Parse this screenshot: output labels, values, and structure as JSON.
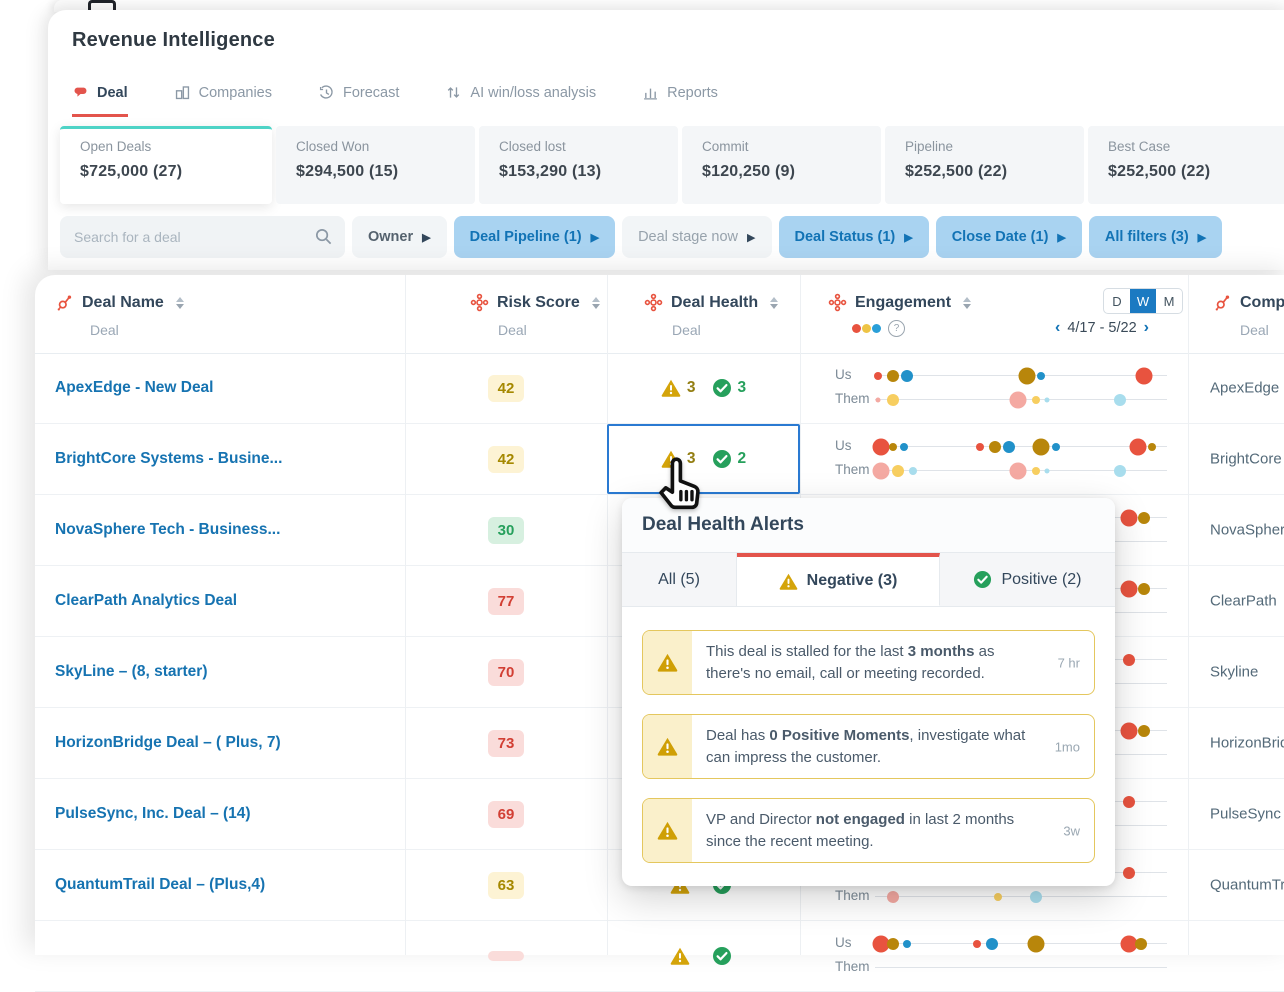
{
  "app": {
    "title": "Revenue Intelligence"
  },
  "nav": {
    "tabs": [
      {
        "label": "Deal",
        "icon": "deal-icon",
        "active": true
      },
      {
        "label": "Companies",
        "icon": "companies-icon"
      },
      {
        "label": "Forecast",
        "icon": "forecast-icon"
      },
      {
        "label": "AI win/loss analysis",
        "icon": "ai-winloss-icon"
      },
      {
        "label": "Reports",
        "icon": "reports-icon"
      }
    ]
  },
  "summary_cards": [
    {
      "label": "Open Deals",
      "value": "$725,000 (27)",
      "active": true
    },
    {
      "label": "Closed Won",
      "value": "$294,500 (15)",
      "active": false
    },
    {
      "label": "Closed lost",
      "value": "$153,290 (13)",
      "active": false
    },
    {
      "label": "Commit",
      "value": "$120,250 (9)",
      "active": false
    },
    {
      "label": "Pipeline",
      "value": "$252,500 (22)",
      "active": false
    },
    {
      "label": "Best Case",
      "value": "$252,500 (22)",
      "active": false
    }
  ],
  "filters": {
    "search_placeholder": "Search for a deal",
    "buttons": [
      {
        "label": "Owner",
        "style": "plain"
      },
      {
        "label": "Deal Pipeline (1)",
        "style": "active"
      },
      {
        "label": "Deal stage now",
        "style": "muted"
      },
      {
        "label": "Deal Status (1)",
        "style": "active"
      },
      {
        "label": "Close Date (1)",
        "style": "active"
      },
      {
        "label": "All filters (3)",
        "style": "active"
      }
    ]
  },
  "table": {
    "columns": {
      "deal_name": {
        "label": "Deal Name",
        "sub": "Deal"
      },
      "risk": {
        "label": "Risk Score",
        "sub": "Deal"
      },
      "health": {
        "label": "Deal Health",
        "sub": "Deal"
      },
      "engagement": {
        "label": "Engagement"
      },
      "company": {
        "label": "Company",
        "sub": "Deal"
      }
    },
    "engagement_header": {
      "periods": [
        "D",
        "W",
        "M"
      ],
      "selected_period": "W",
      "date_range": "4/17 - 5/22"
    },
    "engagement_labels": {
      "us": "Us",
      "them": "Them"
    },
    "rows": [
      {
        "name": "ApexEdge - New Deal",
        "risk": "42",
        "risk_level": "yellow",
        "negative": "3",
        "positive": "3",
        "company": "ApexEdge",
        "selected": false,
        "us": [
          {
            "c": "red",
            "s": "s",
            "x": 1
          },
          {
            "c": "olive",
            "s": "m",
            "x": 6
          },
          {
            "c": "blue",
            "s": "m",
            "x": 11
          },
          {
            "c": "olive",
            "s": "l",
            "x": 52
          },
          {
            "c": "blue",
            "s": "s",
            "x": 57
          },
          {
            "c": "red",
            "s": "l",
            "x": 92
          }
        ],
        "them": [
          {
            "c": "pink",
            "s": "xs",
            "x": 1
          },
          {
            "c": "yellow",
            "s": "m",
            "x": 6
          },
          {
            "c": "pink",
            "s": "l",
            "x": 49
          },
          {
            "c": "yellow",
            "s": "s",
            "x": 55
          },
          {
            "c": "lblue",
            "s": "xs",
            "x": 59
          },
          {
            "c": "lblue",
            "s": "m",
            "x": 84
          }
        ]
      },
      {
        "name": "BrightCore Systems - Busine...",
        "risk": "42",
        "risk_level": "yellow",
        "negative": "3",
        "positive": "2",
        "company": "BrightCore",
        "selected": true,
        "us": [
          {
            "c": "red",
            "s": "l",
            "x": 2
          },
          {
            "c": "olive",
            "s": "s",
            "x": 6
          },
          {
            "c": "blue",
            "s": "s",
            "x": 10
          },
          {
            "c": "red",
            "s": "s",
            "x": 36
          },
          {
            "c": "olive",
            "s": "m",
            "x": 41
          },
          {
            "c": "blue",
            "s": "m",
            "x": 46
          },
          {
            "c": "olive",
            "s": "l",
            "x": 57
          },
          {
            "c": "blue",
            "s": "s",
            "x": 62
          },
          {
            "c": "red",
            "s": "l",
            "x": 90
          },
          {
            "c": "olive",
            "s": "s",
            "x": 95
          }
        ],
        "them": [
          {
            "c": "pink",
            "s": "l",
            "x": 2
          },
          {
            "c": "yellow",
            "s": "m",
            "x": 8
          },
          {
            "c": "lblue",
            "s": "s",
            "x": 13
          },
          {
            "c": "pink",
            "s": "l",
            "x": 49
          },
          {
            "c": "yellow",
            "s": "s",
            "x": 55
          },
          {
            "c": "lblue",
            "s": "xs",
            "x": 59
          },
          {
            "c": "lblue",
            "s": "m",
            "x": 84
          }
        ]
      },
      {
        "name": "NovaSphere Tech - Business...",
        "risk": "30",
        "risk_level": "green",
        "negative": "",
        "positive": "",
        "company": "NovaSphere",
        "selected": false,
        "us": [
          {
            "c": "red",
            "s": "m",
            "x": 3
          },
          {
            "c": "olive",
            "s": "m",
            "x": 28
          },
          {
            "c": "blue",
            "s": "s",
            "x": 33
          },
          {
            "c": "olive",
            "s": "l",
            "x": 55
          },
          {
            "c": "red",
            "s": "l",
            "x": 87
          },
          {
            "c": "olive",
            "s": "m",
            "x": 92
          }
        ],
        "them": [
          {
            "c": "pink",
            "s": "m",
            "x": 4
          },
          {
            "c": "yellow",
            "s": "s",
            "x": 9
          },
          {
            "c": "pink",
            "s": "l",
            "x": 50
          },
          {
            "c": "lblue",
            "s": "s",
            "x": 56
          }
        ]
      },
      {
        "name": "ClearPath Analytics Deal",
        "risk": "77",
        "risk_level": "red",
        "negative": "",
        "positive": "",
        "company": "ClearPath",
        "selected": false,
        "us": [
          {
            "c": "red",
            "s": "s",
            "x": 5
          },
          {
            "c": "blue",
            "s": "m",
            "x": 30
          },
          {
            "c": "olive",
            "s": "l",
            "x": 55
          },
          {
            "c": "red",
            "s": "l",
            "x": 87
          },
          {
            "c": "olive",
            "s": "m",
            "x": 92
          }
        ],
        "them": [
          {
            "c": "pink",
            "s": "l",
            "x": 3
          },
          {
            "c": "yellow",
            "s": "m",
            "x": 8
          },
          {
            "c": "lblue",
            "s": "m",
            "x": 50
          }
        ]
      },
      {
        "name": "SkyLine – (8, starter)",
        "risk": "70",
        "risk_level": "red",
        "negative": "",
        "positive": "",
        "company": "Skyline",
        "selected": false,
        "us": [
          {
            "c": "olive",
            "s": "m",
            "x": 6
          },
          {
            "c": "red",
            "s": "s",
            "x": 30
          },
          {
            "c": "olive",
            "s": "l",
            "x": 52
          },
          {
            "c": "red",
            "s": "m",
            "x": 87
          }
        ],
        "them": [
          {
            "c": "pink",
            "s": "m",
            "x": 5
          },
          {
            "c": "yellow",
            "s": "m",
            "x": 45
          },
          {
            "c": "lblue",
            "s": "s",
            "x": 60
          }
        ]
      },
      {
        "name": "HorizonBridge Deal – ( Plus, 7)",
        "risk": "73",
        "risk_level": "red",
        "negative": "",
        "positive": "",
        "company": "HorizonBridge",
        "selected": false,
        "us": [
          {
            "c": "red",
            "s": "m",
            "x": 4
          },
          {
            "c": "blue",
            "s": "s",
            "x": 9
          },
          {
            "c": "olive",
            "s": "l",
            "x": 50
          },
          {
            "c": "red",
            "s": "l",
            "x": 87
          },
          {
            "c": "olive",
            "s": "m",
            "x": 92
          }
        ],
        "them": [
          {
            "c": "pink",
            "s": "l",
            "x": 4
          },
          {
            "c": "lblue",
            "s": "m",
            "x": 48
          }
        ]
      },
      {
        "name": "PulseSync, Inc. Deal – (14)",
        "risk": "69",
        "risk_level": "red",
        "negative": "",
        "positive": "",
        "company": "PulseSync",
        "selected": false,
        "us": [
          {
            "c": "red",
            "s": "s",
            "x": 3
          },
          {
            "c": "olive",
            "s": "m",
            "x": 35
          },
          {
            "c": "blue",
            "s": "m",
            "x": 55
          },
          {
            "c": "red",
            "s": "m",
            "x": 87
          }
        ],
        "them": [
          {
            "c": "yellow",
            "s": "m",
            "x": 6
          },
          {
            "c": "pink",
            "s": "l",
            "x": 45
          },
          {
            "c": "lblue",
            "s": "s",
            "x": 62
          }
        ]
      },
      {
        "name": "QuantumTrail Deal – (Plus,4)",
        "risk": "63",
        "risk_level": "yellow",
        "negative": "",
        "positive": "",
        "company": "QuantumTrail",
        "selected": false,
        "us": [
          {
            "c": "red",
            "s": "m",
            "x": 5
          },
          {
            "c": "olive",
            "s": "m",
            "x": 40
          },
          {
            "c": "blue",
            "s": "s",
            "x": 58
          },
          {
            "c": "red",
            "s": "m",
            "x": 87
          }
        ],
        "them": [
          {
            "c": "pink",
            "s": "m",
            "x": 6
          },
          {
            "c": "yellow",
            "s": "s",
            "x": 42
          },
          {
            "c": "lblue",
            "s": "m",
            "x": 55
          }
        ]
      },
      {
        "name": "",
        "risk": "",
        "risk_level": "red",
        "negative": "",
        "positive": "",
        "company": "",
        "selected": false,
        "us": [
          {
            "c": "red",
            "s": "l",
            "x": 2
          },
          {
            "c": "olive",
            "s": "m",
            "x": 6
          },
          {
            "c": "blue",
            "s": "s",
            "x": 11
          },
          {
            "c": "red",
            "s": "s",
            "x": 35
          },
          {
            "c": "blue",
            "s": "m",
            "x": 40
          },
          {
            "c": "olive",
            "s": "l",
            "x": 55
          },
          {
            "c": "red",
            "s": "l",
            "x": 87
          },
          {
            "c": "olive",
            "s": "m",
            "x": 91
          }
        ],
        "them": []
      }
    ]
  },
  "popup": {
    "title": "Deal Health Alerts",
    "tabs": [
      {
        "label": "All (5)",
        "active": false
      },
      {
        "label": "Negative (3)",
        "active": true,
        "icon": "warning-icon"
      },
      {
        "label": "Positive (2)",
        "active": false,
        "icon": "check-icon"
      }
    ],
    "alerts": [
      {
        "text": "This deal is stalled for the last **3 months** as there's no email, call or meeting recorded.",
        "time": "7 hr"
      },
      {
        "text": "Deal has **0 Positive Moments**, investigate what can impress the customer.",
        "time": "1mo"
      },
      {
        "text": "VP and Director **not engaged** in last 2 months since the recent meeting.",
        "time": "3w"
      }
    ]
  },
  "colors": {
    "brand_red": "#e3544c",
    "teal_accent": "#4ed3c6",
    "link_blue": "#1673b1",
    "chip_blue_bg": "#a9d3f1",
    "chip_blue_text": "#1273b5",
    "selection_blue": "#2a7ad2",
    "warning_gold": "#d4a40a",
    "positive_green": "#26a05c",
    "dot_red": "#e8533f",
    "dot_olive": "#b8860b",
    "dot_blue": "#2191c9",
    "dot_pink": "#f4a9a2",
    "dot_yellow": "#f7ce60",
    "dot_lightblue": "#a8dded"
  }
}
